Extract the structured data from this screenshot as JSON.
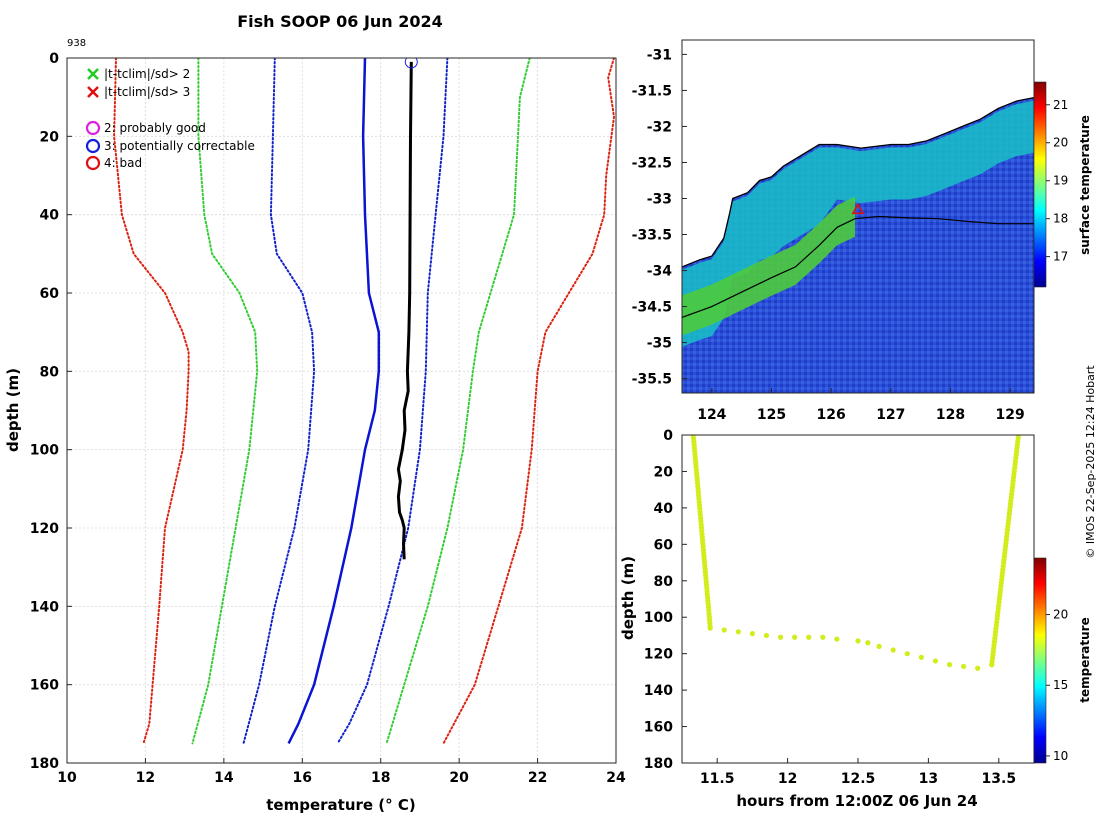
{
  "figure": {
    "title": "Fish SOOP 06 Jun 2024",
    "station_id": "938",
    "credit": "© IMOS 22-Sep-2025 12:24 Hobart"
  },
  "legend": {
    "items": [
      {
        "symbol": "x",
        "color": "#22cc22",
        "label": "|t-tclim|/sd> 2"
      },
      {
        "symbol": "x",
        "color": "#dd1111",
        "label": "|t-tclim|/sd> 3"
      },
      {
        "symbol": "o",
        "color": "#dd22dd",
        "label": "2: probably good"
      },
      {
        "symbol": "o",
        "color": "#1122dd",
        "label": "3: potentially correctable"
      },
      {
        "symbol": "o",
        "color": "#dd1111",
        "label": "4: bad"
      }
    ]
  },
  "chart_data": [
    {
      "type": "line",
      "name": "profile",
      "xlabel": "temperature (° C)",
      "ylabel": "depth (m)",
      "xlim": [
        10,
        24
      ],
      "ylim": [
        180,
        0
      ],
      "xticks": [
        10,
        12,
        14,
        16,
        18,
        20,
        22,
        24
      ],
      "yticks": [
        0,
        20,
        40,
        60,
        80,
        100,
        120,
        140,
        160,
        180
      ],
      "grid": true,
      "series": [
        {
          "name": "clim mean",
          "color": "#0a14d2",
          "style": "solid",
          "width": 2.5,
          "points": [
            [
              17.6,
              0
            ],
            [
              17.55,
              20
            ],
            [
              17.6,
              40
            ],
            [
              17.7,
              60
            ],
            [
              17.95,
              70
            ],
            [
              17.95,
              80
            ],
            [
              17.85,
              90
            ],
            [
              17.6,
              100
            ],
            [
              17.25,
              120
            ],
            [
              16.8,
              140
            ],
            [
              16.3,
              160
            ],
            [
              15.9,
              170
            ],
            [
              15.65,
              175
            ]
          ]
        },
        {
          "name": "mean-1sd",
          "color": "#1122cc",
          "style": "dotted",
          "width": 2,
          "points": [
            [
              15.3,
              0
            ],
            [
              15.25,
              20
            ],
            [
              15.2,
              40
            ],
            [
              15.35,
              50
            ],
            [
              16.0,
              60
            ],
            [
              16.25,
              70
            ],
            [
              16.3,
              80
            ],
            [
              16.15,
              100
            ],
            [
              15.8,
              120
            ],
            [
              15.3,
              140
            ],
            [
              14.9,
              160
            ],
            [
              14.5,
              175
            ]
          ]
        },
        {
          "name": "mean+1sd",
          "color": "#1122cc",
          "style": "dotted",
          "width": 2,
          "points": [
            [
              19.7,
              0
            ],
            [
              19.6,
              20
            ],
            [
              19.4,
              40
            ],
            [
              19.2,
              60
            ],
            [
              19.15,
              80
            ],
            [
              19.0,
              100
            ],
            [
              18.7,
              120
            ],
            [
              18.2,
              140
            ],
            [
              17.65,
              160
            ],
            [
              17.2,
              170
            ],
            [
              16.9,
              175
            ]
          ]
        },
        {
          "name": "mean-2sd",
          "color": "#33cc33",
          "style": "dotted",
          "width": 2,
          "points": [
            [
              13.35,
              0
            ],
            [
              13.35,
              20
            ],
            [
              13.5,
              40
            ],
            [
              13.7,
              50
            ],
            [
              14.4,
              60
            ],
            [
              14.8,
              70
            ],
            [
              14.85,
              80
            ],
            [
              14.65,
              100
            ],
            [
              14.3,
              120
            ],
            [
              13.95,
              140
            ],
            [
              13.6,
              160
            ],
            [
              13.2,
              175
            ]
          ]
        },
        {
          "name": "mean+2sd",
          "color": "#33cc33",
          "style": "dotted",
          "width": 2,
          "points": [
            [
              21.8,
              0
            ],
            [
              21.55,
              10
            ],
            [
              21.5,
              20
            ],
            [
              21.4,
              40
            ],
            [
              21.1,
              50
            ],
            [
              20.8,
              60
            ],
            [
              20.5,
              70
            ],
            [
              20.35,
              80
            ],
            [
              20.1,
              100
            ],
            [
              19.7,
              120
            ],
            [
              19.2,
              140
            ],
            [
              18.6,
              160
            ],
            [
              18.15,
              175
            ]
          ]
        },
        {
          "name": "mean-3sd",
          "color": "#dd2211",
          "style": "dotted",
          "width": 2,
          "points": [
            [
              11.25,
              0
            ],
            [
              11.2,
              20
            ],
            [
              11.4,
              40
            ],
            [
              11.7,
              50
            ],
            [
              12.5,
              60
            ],
            [
              12.95,
              70
            ],
            [
              13.1,
              75
            ],
            [
              13.1,
              80
            ],
            [
              13.05,
              90
            ],
            [
              12.95,
              100
            ],
            [
              12.5,
              120
            ],
            [
              12.35,
              140
            ],
            [
              12.1,
              170
            ],
            [
              11.95,
              175
            ]
          ]
        },
        {
          "name": "mean+3sd",
          "color": "#dd2211",
          "style": "dotted",
          "width": 2,
          "points": [
            [
              23.95,
              0
            ],
            [
              23.8,
              5
            ],
            [
              23.95,
              15
            ],
            [
              23.75,
              30
            ],
            [
              23.7,
              40
            ],
            [
              23.4,
              50
            ],
            [
              22.8,
              60
            ],
            [
              22.2,
              70
            ],
            [
              22.0,
              80
            ],
            [
              21.85,
              100
            ],
            [
              21.6,
              120
            ],
            [
              21.0,
              140
            ],
            [
              20.4,
              160
            ],
            [
              19.6,
              175
            ]
          ]
        },
        {
          "name": "observed",
          "color": "#000000",
          "style": "solid",
          "width": 3,
          "points": [
            [
              18.78,
              1
            ],
            [
              18.76,
              20
            ],
            [
              18.75,
              40
            ],
            [
              18.74,
              60
            ],
            [
              18.72,
              70
            ],
            [
              18.68,
              80
            ],
            [
              18.7,
              85
            ],
            [
              18.6,
              90
            ],
            [
              18.62,
              95
            ],
            [
              18.55,
              100
            ],
            [
              18.45,
              105
            ],
            [
              18.5,
              108
            ],
            [
              18.45,
              112
            ],
            [
              18.48,
              116
            ],
            [
              18.55,
              118
            ],
            [
              18.6,
              120
            ],
            [
              18.58,
              124
            ],
            [
              18.6,
              128
            ]
          ]
        }
      ],
      "markers": [
        {
          "x": 18.78,
          "y": 1,
          "symbol": "o",
          "color": "#1122dd"
        }
      ]
    },
    {
      "type": "heatmap",
      "name": "sst_map",
      "xlim": [
        123.5,
        129.4
      ],
      "ylim": [
        -35.7,
        -30.8
      ],
      "xticks": [
        124,
        125,
        126,
        127,
        128,
        129
      ],
      "yticks": [
        -31,
        -31.5,
        -32,
        -32.5,
        -33,
        -33.5,
        -34,
        -34.5,
        -35,
        -35.5
      ],
      "colorbar": {
        "label": "surface temperature",
        "range": [
          16.2,
          21.6
        ],
        "ticks": [
          17,
          18,
          19,
          20,
          21
        ]
      },
      "coastline": [
        [
          123.5,
          -33.95
        ],
        [
          123.8,
          -33.85
        ],
        [
          124.0,
          -33.8
        ],
        [
          124.2,
          -33.55
        ],
        [
          124.3,
          -33.2
        ],
        [
          124.35,
          -33.0
        ],
        [
          124.6,
          -32.92
        ],
        [
          124.8,
          -32.75
        ],
        [
          125.0,
          -32.7
        ],
        [
          125.2,
          -32.55
        ],
        [
          125.5,
          -32.4
        ],
        [
          125.8,
          -32.25
        ],
        [
          126.1,
          -32.25
        ],
        [
          126.5,
          -32.3
        ],
        [
          127.0,
          -32.25
        ],
        [
          127.3,
          -32.25
        ],
        [
          127.6,
          -32.2
        ],
        [
          127.9,
          -32.1
        ],
        [
          128.2,
          -32.0
        ],
        [
          128.5,
          -31.9
        ],
        [
          128.8,
          -31.75
        ],
        [
          129.1,
          -31.65
        ],
        [
          129.4,
          -31.6
        ]
      ],
      "track": [
        [
          123.5,
          -34.65
        ],
        [
          124.0,
          -34.5
        ],
        [
          124.5,
          -34.3
        ],
        [
          125.0,
          -34.1
        ],
        [
          125.4,
          -33.95
        ],
        [
          125.8,
          -33.65
        ],
        [
          126.1,
          -33.4
        ],
        [
          126.4,
          -33.28
        ],
        [
          126.8,
          -33.25
        ],
        [
          127.3,
          -33.27
        ],
        [
          127.8,
          -33.28
        ],
        [
          128.3,
          -33.32
        ],
        [
          128.8,
          -33.35
        ],
        [
          129.4,
          -33.35
        ]
      ],
      "marker": {
        "lon": 126.45,
        "lat": -33.15,
        "symbol": "triangle",
        "color": "#dd1111"
      }
    },
    {
      "type": "scatter",
      "name": "depth_time",
      "xlabel": "hours from 12:00Z 06 Jun 24",
      "ylabel": "depth (m)",
      "xlim": [
        11.25,
        13.75
      ],
      "ylim": [
        180,
        0
      ],
      "xticks": [
        11.5,
        12,
        12.5,
        13,
        13.5
      ],
      "yticks": [
        0,
        20,
        40,
        60,
        80,
        100,
        120,
        140,
        160,
        180
      ],
      "colorbar": {
        "label": "temperature",
        "range": [
          9.5,
          24
        ],
        "ticks": [
          10,
          15,
          20
        ]
      },
      "point_color": "#d2ec1c",
      "descent": [
        [
          11.33,
          0
        ],
        [
          11.45,
          105
        ]
      ],
      "bottom": [
        [
          11.45,
          106
        ],
        [
          11.55,
          107
        ],
        [
          11.65,
          108
        ],
        [
          11.75,
          109
        ],
        [
          11.85,
          110
        ],
        [
          11.95,
          111
        ],
        [
          12.05,
          111
        ],
        [
          12.15,
          111
        ],
        [
          12.25,
          111
        ],
        [
          12.35,
          112
        ],
        [
          12.5,
          113
        ],
        [
          12.57,
          114
        ],
        [
          12.65,
          116
        ],
        [
          12.75,
          118
        ],
        [
          12.85,
          120
        ],
        [
          12.95,
          122
        ],
        [
          13.05,
          124
        ],
        [
          13.15,
          126
        ],
        [
          13.25,
          127
        ],
        [
          13.35,
          128
        ],
        [
          13.45,
          126
        ]
      ],
      "ascent": [
        [
          13.45,
          126
        ],
        [
          13.64,
          0
        ]
      ]
    }
  ]
}
